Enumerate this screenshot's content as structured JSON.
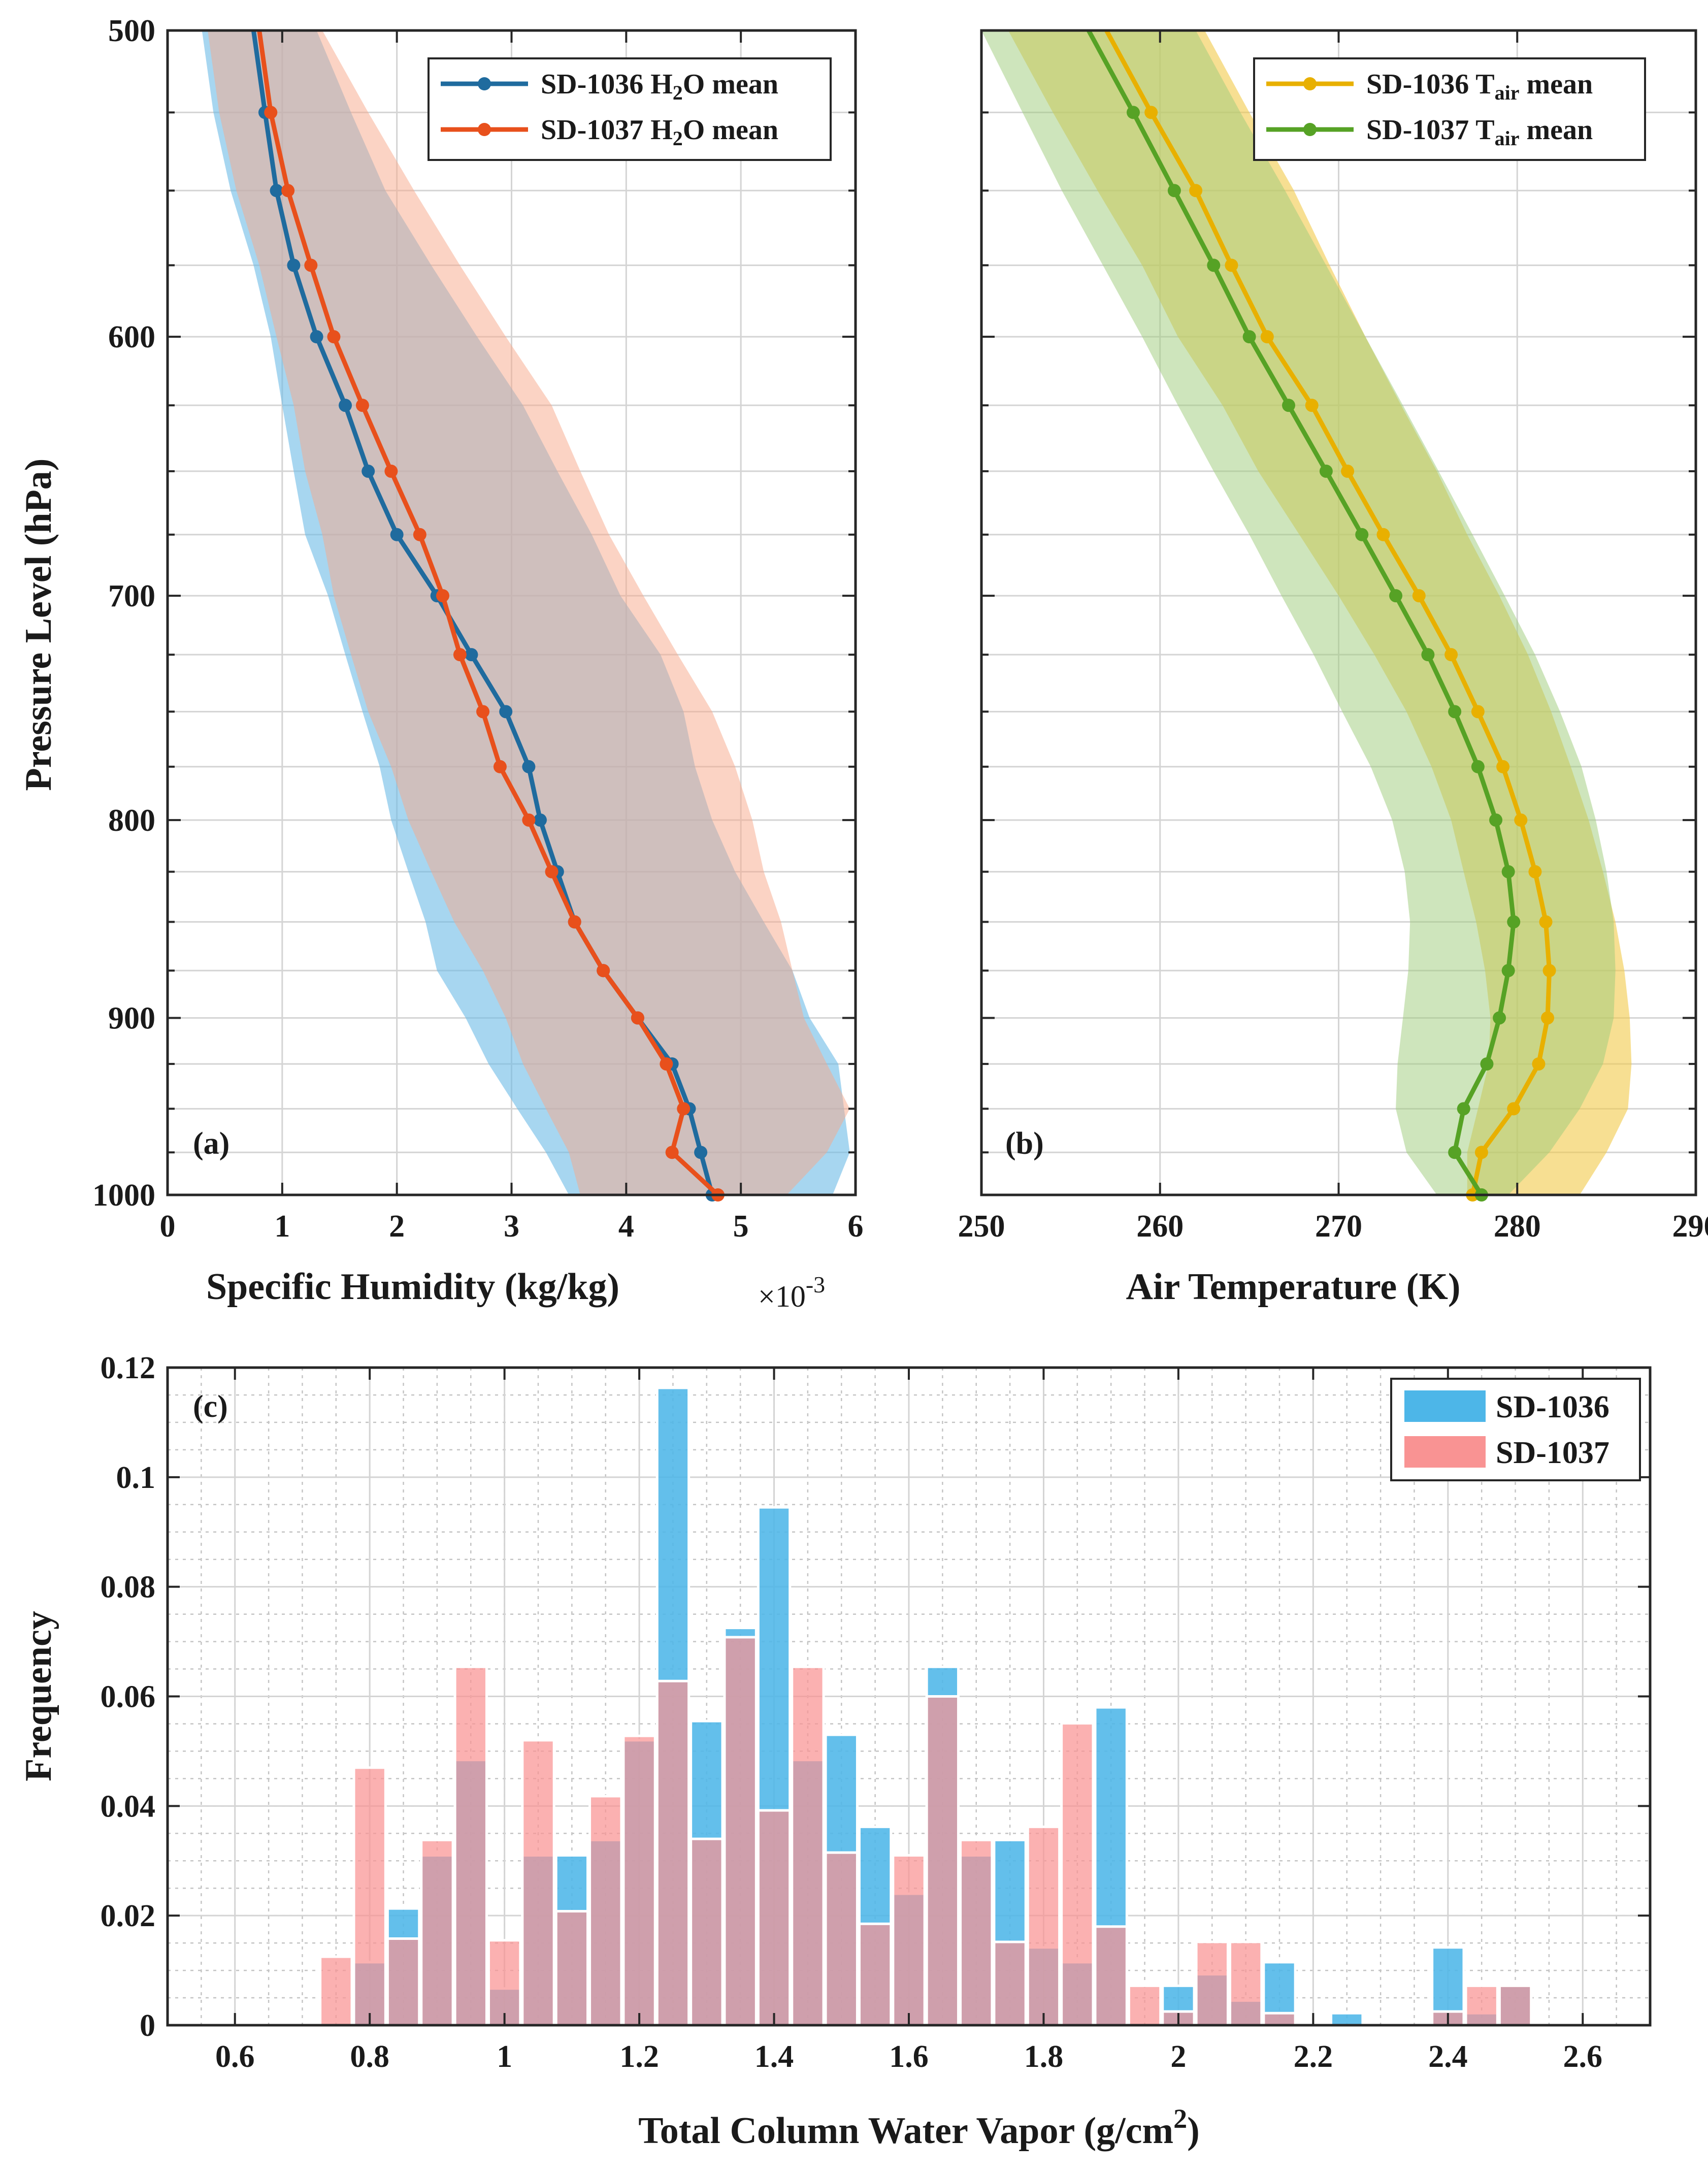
{
  "chart_data": [
    {
      "id": "a",
      "type": "line",
      "panel_label": "(a)",
      "xlabel": "Specific Humidity (kg/kg)",
      "x_exponent_label": "×10",
      "x_exponent": "-3",
      "ylabel": "Pressure Level (hPa)",
      "xlim": [
        0,
        6
      ],
      "ylim": [
        500,
        1000
      ],
      "y_reversed": true,
      "y_scale": "log",
      "grid": true,
      "xticks": [
        0,
        1,
        2,
        3,
        4,
        5,
        6
      ],
      "xtick_labels": [
        "0",
        "1",
        "2",
        "3",
        "4",
        "5",
        "6"
      ],
      "yticks": [
        500,
        600,
        700,
        800,
        900,
        1000
      ],
      "ytick_labels": [
        "500",
        "600",
        "700",
        "800",
        "900",
        "1000"
      ],
      "legend_location": "top-right",
      "series": [
        {
          "name": "SD-1036 H₂O mean",
          "legend_main": "SD-1036 H",
          "legend_sub": "2",
          "legend_tail": "O mean",
          "color": "#1f6b9e",
          "band_color": "#6dbbe6",
          "pressure": [
            500,
            525,
            550,
            575,
            600,
            625,
            650,
            675,
            700,
            725,
            750,
            775,
            800,
            825,
            850,
            875,
            900,
            925,
            950,
            975,
            1000
          ],
          "mean": [
            0.75,
            0.85,
            0.95,
            1.1,
            1.3,
            1.55,
            1.75,
            2.0,
            2.35,
            2.65,
            2.95,
            3.15,
            3.25,
            3.4,
            3.55,
            3.8,
            4.1,
            4.4,
            4.55,
            4.65,
            4.75
          ],
          "lower": [
            0.3,
            0.4,
            0.55,
            0.75,
            0.9,
            1.0,
            1.1,
            1.2,
            1.4,
            1.55,
            1.7,
            1.85,
            1.95,
            2.1,
            2.25,
            2.35,
            2.6,
            2.8,
            3.05,
            3.3,
            3.5
          ],
          "upper": [
            1.3,
            1.6,
            1.9,
            2.3,
            2.7,
            3.1,
            3.4,
            3.7,
            3.95,
            4.3,
            4.5,
            4.6,
            4.75,
            4.95,
            5.2,
            5.45,
            5.6,
            5.85,
            5.9,
            5.95,
            5.8
          ]
        },
        {
          "name": "SD-1037 H₂O mean",
          "legend_main": "SD-1037 H",
          "legend_sub": "2",
          "legend_tail": "O mean",
          "color": "#e8501c",
          "band_color": "#f7a78a",
          "pressure": [
            500,
            525,
            550,
            575,
            600,
            625,
            650,
            675,
            700,
            725,
            750,
            775,
            800,
            825,
            850,
            875,
            900,
            925,
            950,
            975,
            1000
          ],
          "mean": [
            0.8,
            0.9,
            1.05,
            1.25,
            1.45,
            1.7,
            1.95,
            2.2,
            2.4,
            2.55,
            2.75,
            2.9,
            3.15,
            3.35,
            3.55,
            3.8,
            4.1,
            4.35,
            4.5,
            4.4,
            4.8
          ],
          "lower": [
            0.35,
            0.45,
            0.6,
            0.8,
            0.95,
            1.1,
            1.2,
            1.35,
            1.45,
            1.6,
            1.75,
            1.95,
            2.1,
            2.3,
            2.5,
            2.75,
            2.95,
            3.1,
            3.3,
            3.5,
            3.6
          ],
          "upper": [
            1.35,
            1.75,
            2.15,
            2.55,
            2.95,
            3.35,
            3.6,
            3.85,
            4.15,
            4.45,
            4.75,
            4.95,
            5.1,
            5.2,
            5.35,
            5.45,
            5.55,
            5.75,
            5.95,
            5.75,
            5.4
          ]
        }
      ]
    },
    {
      "id": "b",
      "type": "line",
      "panel_label": "(b)",
      "xlabel": "Air Temperature (K)",
      "xlim": [
        250,
        290
      ],
      "ylim": [
        500,
        1000
      ],
      "y_reversed": true,
      "y_scale": "log",
      "grid": true,
      "xticks": [
        250,
        260,
        270,
        280,
        290
      ],
      "xtick_labels": [
        "250",
        "260",
        "270",
        "280",
        "290"
      ],
      "legend_location": "top-right",
      "series": [
        {
          "name": "SD-1036 Tair mean",
          "legend_main": "SD-1036 T",
          "legend_sub": "air",
          "legend_tail": " mean",
          "color": "#e8b000",
          "band_color": "#f2c94a",
          "pressure": [
            500,
            525,
            550,
            575,
            600,
            625,
            650,
            675,
            700,
            725,
            750,
            775,
            800,
            825,
            850,
            875,
            900,
            925,
            950,
            975,
            1000
          ],
          "mean": [
            257,
            259.5,
            262,
            264,
            266,
            268.5,
            270.5,
            272.5,
            274.5,
            276.3,
            277.8,
            279.2,
            280.2,
            281,
            281.6,
            281.8,
            281.7,
            281.2,
            279.8,
            278,
            277.5
          ],
          "lower": [
            251.5,
            254,
            256.5,
            259,
            261,
            263.5,
            265.5,
            267.8,
            270,
            272,
            273.8,
            275.2,
            276.3,
            277,
            277.7,
            278.2,
            278.5,
            278.4,
            277.8,
            277.2,
            277.2
          ],
          "upper": [
            262.5,
            265,
            267.5,
            269.5,
            271.5,
            273.5,
            275.5,
            277.2,
            279,
            280.6,
            281.9,
            283,
            284,
            284.8,
            285.5,
            286,
            286.3,
            286.4,
            286.2,
            285,
            283.5
          ]
        },
        {
          "name": "SD-1037 Tair mean",
          "legend_main": "SD-1037 T",
          "legend_sub": "air",
          "legend_tail": " mean",
          "color": "#56a225",
          "band_color": "#9dcb7a",
          "pressure": [
            500,
            525,
            550,
            575,
            600,
            625,
            650,
            675,
            700,
            725,
            750,
            775,
            800,
            825,
            850,
            875,
            900,
            925,
            950,
            975,
            1000
          ],
          "mean": [
            256,
            258.5,
            260.8,
            263,
            265,
            267.2,
            269.3,
            271.3,
            273.2,
            275,
            276.5,
            277.8,
            278.8,
            279.5,
            279.8,
            279.5,
            279,
            278.3,
            277,
            276.5,
            278
          ],
          "lower": [
            250,
            252.3,
            254.5,
            256.8,
            259,
            261,
            263,
            265,
            266.8,
            268.6,
            270.2,
            271.8,
            273,
            273.7,
            274,
            273.9,
            273.6,
            273.3,
            273.2,
            273.8,
            275.5
          ],
          "upper": [
            262,
            264.5,
            267,
            269.3,
            271.5,
            273.6,
            275.6,
            277.5,
            279.3,
            281,
            282.4,
            283.6,
            284.4,
            285,
            285.4,
            285.5,
            285.4,
            284.8,
            283.5,
            281.8,
            279.5
          ]
        }
      ]
    },
    {
      "id": "c",
      "type": "bar",
      "panel_label": "(c)",
      "xlabel": "Total Column Water Vapor (g/cm",
      "xlabel_sup": "2",
      "xlabel_tail": ")",
      "ylabel": "Frequency",
      "xlim": [
        0.5,
        2.7
      ],
      "ylim": [
        0,
        0.12
      ],
      "grid": true,
      "minor_grid": true,
      "bin_width": 0.05,
      "xticks": [
        0.6,
        0.8,
        1.0,
        1.2,
        1.4,
        1.6,
        1.8,
        2.0,
        2.2,
        2.4,
        2.6
      ],
      "xtick_labels": [
        "0.6",
        "0.8",
        "1",
        "1.2",
        "1.4",
        "1.6",
        "1.8",
        "2",
        "2.2",
        "2.4",
        "2.6"
      ],
      "yticks": [
        0,
        0.02,
        0.04,
        0.06,
        0.08,
        0.1,
        0.12
      ],
      "ytick_labels": [
        "0",
        "0.02",
        "0.04",
        "0.06",
        "0.08",
        "0.1",
        "0.12"
      ],
      "legend_location": "top-right",
      "bin_centers": [
        0.75,
        0.8,
        0.85,
        0.9,
        0.95,
        1.0,
        1.05,
        1.1,
        1.15,
        1.2,
        1.25,
        1.3,
        1.35,
        1.4,
        1.45,
        1.5,
        1.55,
        1.6,
        1.65,
        1.7,
        1.75,
        1.8,
        1.85,
        1.9,
        1.95,
        2.0,
        2.05,
        2.1,
        2.15,
        2.2,
        2.25,
        2.3,
        2.35,
        2.4,
        2.45,
        2.5
      ],
      "series": [
        {
          "name": "SD-1036",
          "color": "#4db6e8",
          "values": [
            0,
            0.0115,
            0.0213,
            0.031,
            0.0484,
            0.0067,
            0.031,
            0.031,
            0.0338,
            0.052,
            0.1163,
            0.0555,
            0.0725,
            0.0945,
            0.0484,
            0.053,
            0.0362,
            0.024,
            0.0654,
            0.031,
            0.0338,
            0.0142,
            0.0115,
            0.058,
            0.0,
            0.0072,
            0.0093,
            0.0045,
            0.0115,
            0.0,
            0.0022,
            0,
            0,
            0.0142,
            0.0022,
            0.0072
          ]
        },
        {
          "name": "SD-1037",
          "color": "#f99393",
          "values": [
            0.0125,
            0.047,
            0.0158,
            0.0338,
            0.0654,
            0.0155,
            0.052,
            0.0208,
            0.0418,
            0.0528,
            0.0628,
            0.034,
            0.0708,
            0.0392,
            0.0654,
            0.0315,
            0.0185,
            0.031,
            0.06,
            0.0338,
            0.0152,
            0.0362,
            0.0551,
            0.018,
            0.0072,
            0.0025,
            0.0152,
            0.0152,
            0.0022,
            0.0,
            0.0,
            0,
            0,
            0.0025,
            0.0072,
            0.0072
          ]
        }
      ]
    }
  ]
}
